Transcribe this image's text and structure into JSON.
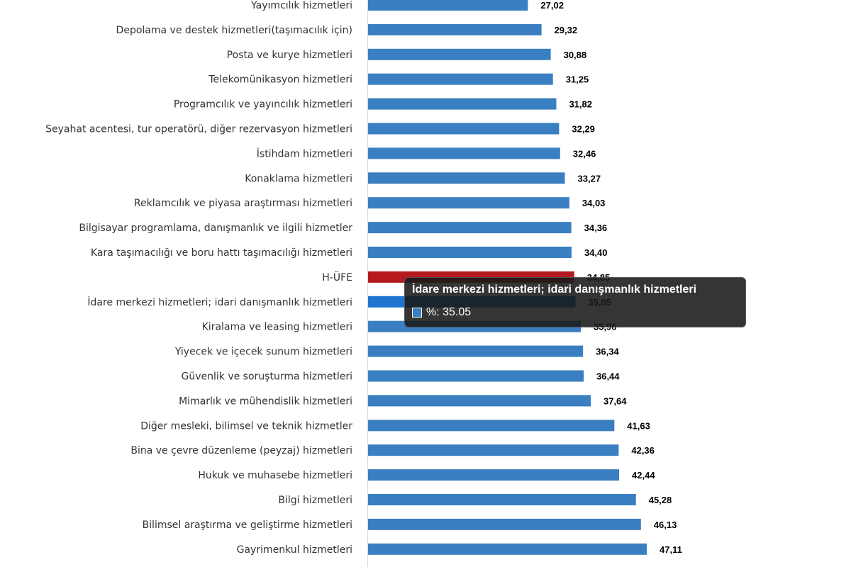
{
  "chart_data": {
    "type": "bar",
    "orientation": "horizontal",
    "categories": [
      "Yayımcılık hizmetleri",
      "Depolama ve destek hizmetleri(taşımacılık için)",
      "Posta ve kurye hizmetleri",
      "Telekomünikasyon hizmetleri",
      "Programcılık ve yayıncılık hizmetleri",
      "Seyahat acentesi, tur operatörü, diğer rezervasyon hizmetleri",
      "İstihdam hizmetleri",
      "Konaklama hizmetleri",
      "Reklamcılık ve piyasa araştırması hizmetleri",
      "Bilgisayar programlama, danışmanlık ve ilgili hizmetler",
      "Kara taşımacılığı ve boru hattı taşımacılığı hizmetleri",
      "H-ÜFE",
      "İdare merkezi hizmetleri; idari danışmanlık hizmetleri",
      "Kiralama ve leasing hizmetleri",
      "Yiyecek ve içecek sunum hizmetleri",
      "Güvenlik ve soruşturma hizmetleri",
      "Mimarlık ve mühendislik hizmetleri",
      "Diğer mesleki, bilimsel ve teknik hizmetler",
      "Bina ve çevre düzenleme (peyzaj) hizmetleri",
      "Hukuk ve muhasebe hizmetleri",
      "Bilgi hizmetleri",
      "Bilimsel araştırma ve geliştirme hizmetleri",
      "Gayrimenkul hizmetleri"
    ],
    "values": [
      27.02,
      29.32,
      30.88,
      31.25,
      31.82,
      32.29,
      32.46,
      33.27,
      34.03,
      34.36,
      34.4,
      34.85,
      35.05,
      35.96,
      36.34,
      36.44,
      37.64,
      41.63,
      42.36,
      42.44,
      45.28,
      46.13,
      47.11
    ],
    "value_labels": [
      "27,02",
      "29,32",
      "30,88",
      "31,25",
      "31,82",
      "32,29",
      "32,46",
      "33,27",
      "34,03",
      "34,36",
      "34,40",
      "34,85",
      "35,05",
      "35,96",
      "36,34",
      "36,44",
      "37,64",
      "41,63",
      "42,36",
      "42,44",
      "45,28",
      "46,13",
      "47,11"
    ],
    "colors": {
      "default": "#3a7fc1",
      "highlight_category": "H-ÜFE",
      "highlight": "#b5191d",
      "hovered_category": "İdare merkezi hizmetleri; idari danışmanlık hizmetleri",
      "hovered": "#1f74cf"
    },
    "xlim": [
      0,
      47.11
    ],
    "grid": false,
    "legend": "none"
  },
  "tooltip": {
    "title": "İdare merkezi hizmetleri; idari danışmanlık hizmetleri",
    "series_label": "%: 35.05"
  }
}
